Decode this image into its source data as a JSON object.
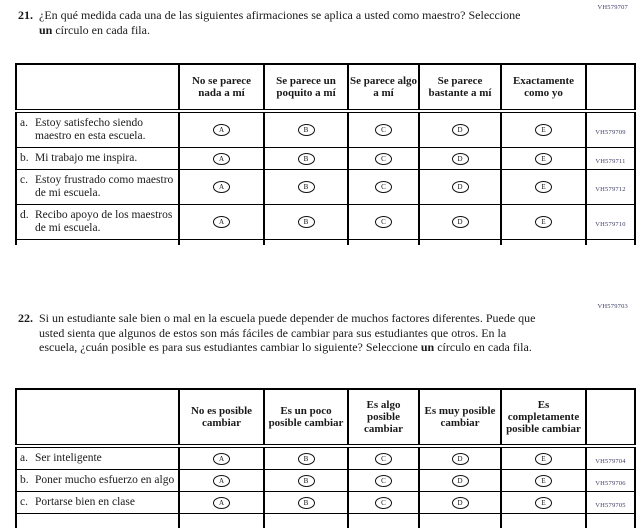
{
  "q21": {
    "number": "21.",
    "code": "VH579707",
    "text_before": "¿En qué medida cada una de las siguientes afirmaciones se aplica a usted como maestro? Seleccione ",
    "bold": "un",
    "text_after": " círculo en cada fila.",
    "columns": [
      "No se parece nada a mí",
      "Se parece un poquito a mí",
      "Se parece algo a mí",
      "Se parece bastante a mí",
      "Exactamente como yo"
    ],
    "option_letters": [
      "A",
      "B",
      "C",
      "D",
      "E"
    ],
    "rows": [
      {
        "letter": "a.",
        "label": "Estoy satisfecho siendo maestro en esta escuela.",
        "code": "VH579709"
      },
      {
        "letter": "b.",
        "label": "Mi trabajo me inspira.",
        "code": "VH579711"
      },
      {
        "letter": "c.",
        "label": "Estoy frustrado como maestro de mi escuela.",
        "code": "VH579712"
      },
      {
        "letter": "d.",
        "label": "Recibo apoyo de los maestros de mi escuela.",
        "code": "VH579710"
      }
    ]
  },
  "q22": {
    "number": "22.",
    "code": "VH579703",
    "text_before": "Si un estudiante sale bien o mal en la escuela puede depender de muchos factores diferentes. Puede que usted sienta que algunos de estos son más fáciles de cambiar para sus estudiantes que otros. En la escuela, ¿cuán posible es para sus estudiantes cambiar lo siguiente? Seleccione ",
    "bold": "un",
    "text_after": " círculo en cada fila.",
    "columns": [
      "No es posible cambiar",
      "Es un poco posible cambiar",
      "Es algo posible cambiar",
      "Es muy posible cambiar",
      "Es completamente posible cambiar"
    ],
    "option_letters": [
      "A",
      "B",
      "C",
      "D",
      "E"
    ],
    "rows": [
      {
        "letter": "a.",
        "label": "Ser inteligente",
        "code": "VH579704"
      },
      {
        "letter": "b.",
        "label": "Poner mucho esfuerzo en algo",
        "code": "VH579706"
      },
      {
        "letter": "c.",
        "label": "Portarse bien en clase",
        "code": "VH579705"
      }
    ]
  }
}
